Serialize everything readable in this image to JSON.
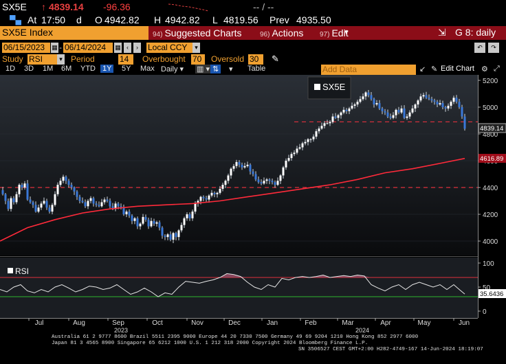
{
  "ticker": {
    "symbol": "SX5E",
    "arrow": "↑",
    "last": "4839.14",
    "change": "-96.36",
    "dashes": "-- / --"
  },
  "quote": {
    "at_label": "At",
    "time": "17:50",
    "time_suffix": "d",
    "open_label": "O",
    "open": "4942.82",
    "high_label": "H",
    "high": "4942.82",
    "low_label": "L",
    "low": "4819.56",
    "prev_label": "Prev",
    "prev": "4935.50"
  },
  "menu": {
    "index_name": "SX5E Index",
    "suggested_num": "94)",
    "suggested_label": "Suggested Charts",
    "actions_num": "96)",
    "actions_label": "Actions",
    "edit_num": "97)",
    "edit_label": "Edit",
    "chart_label": "G 8: daily"
  },
  "dates": {
    "start": "06/15/2023",
    "end": "06/14/2024",
    "currency": "Local CCY"
  },
  "study": {
    "study_label": "Study",
    "study_value": "RSI",
    "period_label": "Period",
    "period_value": "14",
    "overbought_label": "Overbought",
    "overbought_value": "70",
    "oversold_label": "Oversold",
    "oversold_value": "30"
  },
  "toolbar": {
    "ranges": [
      "1D",
      "3D",
      "1M",
      "6M",
      "YTD",
      "1Y",
      "5Y",
      "Max"
    ],
    "active_range": "1Y",
    "frequency": "Daily",
    "table_label": "Table",
    "add_data_placeholder": "Add Data",
    "edit_chart_label": "Edit Chart"
  },
  "chart_data": {
    "type": "candlestick",
    "legend_main": "SX5E",
    "legend_rsi": "RSI",
    "y_ticks": [
      4000,
      4200,
      4400,
      4600,
      4800,
      5000,
      5200
    ],
    "y_range": [
      3960,
      5240
    ],
    "rsi_ticks": [
      0,
      50,
      100
    ],
    "rsi_range": [
      -5,
      110
    ],
    "last_price_label": "4839.14",
    "ma_label": "4616.89",
    "rsi_label": "35.6436",
    "x_months": [
      "Jul",
      "Aug",
      "Sep",
      "Oct",
      "Nov",
      "Dec",
      "Jan",
      "Feb",
      "Mar",
      "Apr",
      "May",
      "Jun"
    ],
    "year_labels": [
      "2023",
      "2024"
    ],
    "horizontal_lines": [
      4400,
      4890
    ],
    "rsi_lines": [
      70,
      30
    ],
    "price_path": [
      [
        0,
        4380
      ],
      [
        4,
        4350
      ],
      [
        8,
        4300
      ],
      [
        12,
        4240
      ],
      [
        16,
        4320
      ],
      [
        20,
        4290
      ],
      [
        24,
        4350
      ],
      [
        28,
        4420
      ],
      [
        32,
        4400
      ],
      [
        36,
        4430
      ],
      [
        40,
        4310
      ],
      [
        44,
        4290
      ],
      [
        48,
        4270
      ],
      [
        52,
        4220
      ],
      [
        56,
        4250
      ],
      [
        60,
        4280
      ],
      [
        64,
        4300
      ],
      [
        68,
        4250
      ],
      [
        72,
        4220
      ],
      [
        76,
        4270
      ],
      [
        80,
        4350
      ],
      [
        84,
        4420
      ],
      [
        88,
        4450
      ],
      [
        92,
        4480
      ],
      [
        96,
        4450
      ],
      [
        100,
        4420
      ],
      [
        104,
        4400
      ],
      [
        108,
        4370
      ],
      [
        112,
        4330
      ],
      [
        116,
        4300
      ],
      [
        120,
        4290
      ],
      [
        124,
        4260
      ],
      [
        128,
        4300
      ],
      [
        132,
        4320
      ],
      [
        136,
        4280
      ],
      [
        140,
        4270
      ],
      [
        144,
        4260
      ],
      [
        148,
        4290
      ],
      [
        152,
        4310
      ],
      [
        156,
        4300
      ],
      [
        160,
        4260
      ],
      [
        164,
        4240
      ],
      [
        168,
        4280
      ],
      [
        172,
        4260
      ],
      [
        176,
        4250
      ],
      [
        180,
        4200
      ],
      [
        184,
        4220
      ],
      [
        188,
        4190
      ],
      [
        192,
        4150
      ],
      [
        196,
        4170
      ],
      [
        200,
        4110
      ],
      [
        204,
        4130
      ],
      [
        208,
        4180
      ],
      [
        212,
        4160
      ],
      [
        216,
        4110
      ],
      [
        220,
        4150
      ],
      [
        224,
        4130
      ],
      [
        228,
        4140
      ],
      [
        232,
        4100
      ],
      [
        236,
        4040
      ],
      [
        240,
        4030
      ],
      [
        244,
        4050
      ],
      [
        248,
        4010
      ],
      [
        252,
        4060
      ],
      [
        256,
        4030
      ],
      [
        260,
        4080
      ],
      [
        264,
        4120
      ],
      [
        268,
        4170
      ],
      [
        272,
        4200
      ],
      [
        276,
        4170
      ],
      [
        280,
        4220
      ],
      [
        284,
        4280
      ],
      [
        288,
        4300
      ],
      [
        292,
        4330
      ],
      [
        296,
        4320
      ],
      [
        300,
        4310
      ],
      [
        304,
        4340
      ],
      [
        308,
        4360
      ],
      [
        312,
        4350
      ],
      [
        316,
        4360
      ],
      [
        320,
        4390
      ],
      [
        324,
        4420
      ],
      [
        328,
        4450
      ],
      [
        332,
        4490
      ],
      [
        336,
        4540
      ],
      [
        340,
        4560
      ],
      [
        344,
        4590
      ],
      [
        348,
        4570
      ],
      [
        352,
        4550
      ],
      [
        356,
        4560
      ],
      [
        360,
        4570
      ],
      [
        364,
        4520
      ],
      [
        368,
        4500
      ],
      [
        372,
        4460
      ],
      [
        376,
        4440
      ],
      [
        380,
        4430
      ],
      [
        384,
        4450
      ],
      [
        388,
        4460
      ],
      [
        392,
        4450
      ],
      [
        396,
        4440
      ],
      [
        400,
        4420
      ],
      [
        404,
        4450
      ],
      [
        408,
        4490
      ],
      [
        412,
        4550
      ],
      [
        416,
        4600
      ],
      [
        420,
        4620
      ],
      [
        424,
        4650
      ],
      [
        428,
        4660
      ],
      [
        432,
        4690
      ],
      [
        436,
        4700
      ],
      [
        440,
        4730
      ],
      [
        444,
        4740
      ],
      [
        448,
        4760
      ],
      [
        452,
        4760
      ],
      [
        456,
        4780
      ],
      [
        460,
        4820
      ],
      [
        464,
        4840
      ],
      [
        468,
        4860
      ],
      [
        472,
        4880
      ],
      [
        476,
        4880
      ],
      [
        480,
        4890
      ],
      [
        484,
        4930
      ],
      [
        488,
        4920
      ],
      [
        492,
        4940
      ],
      [
        496,
        4960
      ],
      [
        500,
        4980
      ],
      [
        504,
        4970
      ],
      [
        508,
        4990
      ],
      [
        512,
        5010
      ],
      [
        516,
        5020
      ],
      [
        520,
        5040
      ],
      [
        524,
        5060
      ],
      [
        528,
        5080
      ],
      [
        532,
        5110
      ],
      [
        536,
        5090
      ],
      [
        540,
        5060
      ],
      [
        544,
        5020
      ],
      [
        548,
        5030
      ],
      [
        552,
        4990
      ],
      [
        556,
        4970
      ],
      [
        560,
        4960
      ],
      [
        564,
        4930
      ],
      [
        568,
        4920
      ],
      [
        572,
        4940
      ],
      [
        576,
        4980
      ],
      [
        580,
        4960
      ],
      [
        584,
        4990
      ],
      [
        588,
        4920
      ],
      [
        592,
        4930
      ],
      [
        596,
        4960
      ],
      [
        600,
        4990
      ],
      [
        604,
        5020
      ],
      [
        608,
        5050
      ],
      [
        612,
        5080
      ],
      [
        616,
        5090
      ],
      [
        620,
        5070
      ],
      [
        624,
        5060
      ],
      [
        628,
        5050
      ],
      [
        632,
        5040
      ],
      [
        636,
        5020
      ],
      [
        640,
        5030
      ],
      [
        644,
        5000
      ],
      [
        648,
        4990
      ],
      [
        652,
        5010
      ],
      [
        656,
        5040
      ],
      [
        660,
        5070
      ],
      [
        664,
        5040
      ],
      [
        668,
        5000
      ],
      [
        672,
        4930
      ],
      [
        676,
        4839
      ]
    ],
    "ma200_path": [
      [
        0,
        4000
      ],
      [
        40,
        4100
      ],
      [
        80,
        4160
      ],
      [
        120,
        4210
      ],
      [
        160,
        4240
      ],
      [
        200,
        4260
      ],
      [
        240,
        4270
      ],
      [
        280,
        4280
      ],
      [
        320,
        4300
      ],
      [
        360,
        4330
      ],
      [
        400,
        4360
      ],
      [
        440,
        4390
      ],
      [
        480,
        4420
      ],
      [
        520,
        4460
      ],
      [
        560,
        4510
      ],
      [
        600,
        4540
      ],
      [
        640,
        4580
      ],
      [
        676,
        4616.89
      ]
    ],
    "rsi_path": [
      [
        0,
        45
      ],
      [
        10,
        40
      ],
      [
        20,
        50
      ],
      [
        30,
        55
      ],
      [
        40,
        42
      ],
      [
        50,
        38
      ],
      [
        60,
        45
      ],
      [
        70,
        40
      ],
      [
        80,
        50
      ],
      [
        90,
        55
      ],
      [
        100,
        48
      ],
      [
        110,
        40
      ],
      [
        120,
        45
      ],
      [
        130,
        52
      ],
      [
        140,
        50
      ],
      [
        150,
        45
      ],
      [
        160,
        48
      ],
      [
        170,
        55
      ],
      [
        180,
        45
      ],
      [
        190,
        35
      ],
      [
        200,
        40
      ],
      [
        210,
        48
      ],
      [
        220,
        40
      ],
      [
        230,
        30
      ],
      [
        240,
        38
      ],
      [
        250,
        35
      ],
      [
        260,
        50
      ],
      [
        270,
        62
      ],
      [
        280,
        60
      ],
      [
        290,
        58
      ],
      [
        300,
        62
      ],
      [
        310,
        65
      ],
      [
        320,
        70
      ],
      [
        330,
        78
      ],
      [
        340,
        76
      ],
      [
        350,
        72
      ],
      [
        360,
        60
      ],
      [
        370,
        50
      ],
      [
        380,
        45
      ],
      [
        390,
        55
      ],
      [
        400,
        50
      ],
      [
        410,
        68
      ],
      [
        420,
        65
      ],
      [
        430,
        70
      ],
      [
        440,
        72
      ],
      [
        450,
        70
      ],
      [
        460,
        72
      ],
      [
        470,
        75
      ],
      [
        480,
        70
      ],
      [
        490,
        72
      ],
      [
        500,
        74
      ],
      [
        510,
        72
      ],
      [
        520,
        75
      ],
      [
        530,
        73
      ],
      [
        540,
        55
      ],
      [
        550,
        48
      ],
      [
        560,
        42
      ],
      [
        570,
        50
      ],
      [
        580,
        55
      ],
      [
        590,
        45
      ],
      [
        600,
        55
      ],
      [
        610,
        60
      ],
      [
        620,
        55
      ],
      [
        630,
        50
      ],
      [
        640,
        55
      ],
      [
        650,
        45
      ],
      [
        660,
        55
      ],
      [
        668,
        45
      ],
      [
        676,
        35.6
      ]
    ]
  },
  "footer": {
    "line1": "Australia 61 2 9777 8600 Brazil 5511 2395 9000 Europe 44 20 7330 7500 Germany 49 69 9204 1210 Hong Kong 852 2977 6000",
    "line2": "Japan 81 3 4565 8900        Singapore 65 6212 1000        U.S. 1 212 318 2000              Copyright 2024 Bloomberg Finance L.P.",
    "line3": "SN 3506527 CEST GMT+2:00 H282-4749-167 14-Jun-2024 18:19:07"
  }
}
